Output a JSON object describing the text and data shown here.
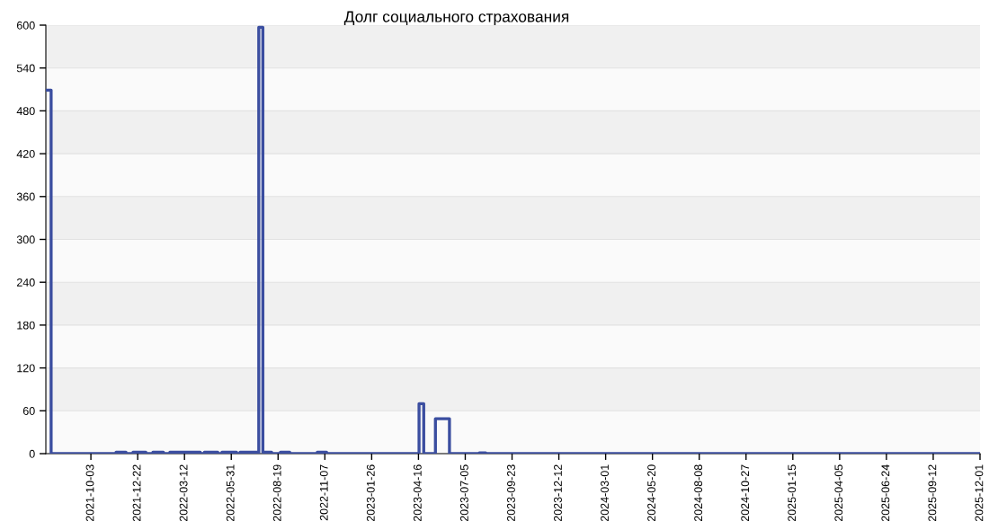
{
  "chart_data": {
    "type": "step",
    "title": "Долг социального страхования",
    "x": [
      "2021-07-18",
      "2021-07-27",
      "2021-11-15",
      "2021-12-02",
      "2021-12-14",
      "2022-01-05",
      "2022-01-17",
      "2022-02-04",
      "2022-02-15",
      "2022-04-08",
      "2022-04-15",
      "2022-05-08",
      "2022-05-15",
      "2022-06-09",
      "2022-06-15",
      "2022-07-16",
      "2022-07-17",
      "2022-07-24",
      "2022-08-08",
      "2022-08-23",
      "2022-09-08",
      "2022-10-25",
      "2022-11-10",
      "2023-04-17",
      "2023-04-25",
      "2023-05-15",
      "2023-06-08",
      "2023-07-29",
      "2023-08-09",
      "2025-12-01"
    ],
    "values": [
      509,
      0,
      2,
      0,
      2,
      0,
      2,
      0,
      2,
      0,
      2,
      0,
      2,
      0,
      2,
      0,
      597,
      2,
      0,
      2,
      0,
      2,
      0,
      70,
      0,
      49,
      0,
      1,
      0,
      0
    ],
    "color": "#3b4ea0",
    "xlim": [
      "2021-07-18",
      "2025-12-01"
    ],
    "xticks": [
      "2021-10-03",
      "2021-12-22",
      "2022-03-12",
      "2022-05-31",
      "2022-08-19",
      "2022-11-07",
      "2023-01-26",
      "2023-04-16",
      "2023-07-05",
      "2023-09-23",
      "2023-12-12",
      "2024-03-01",
      "2024-05-20",
      "2024-08-08",
      "2024-10-27",
      "2025-01-15",
      "2025-04-05",
      "2025-06-24",
      "2025-09-12",
      "2025-12-01"
    ],
    "ylim": [
      0,
      600
    ],
    "yticks": [
      0,
      60,
      120,
      180,
      240,
      300,
      360,
      420,
      480,
      540,
      600
    ],
    "grid": "y"
  }
}
